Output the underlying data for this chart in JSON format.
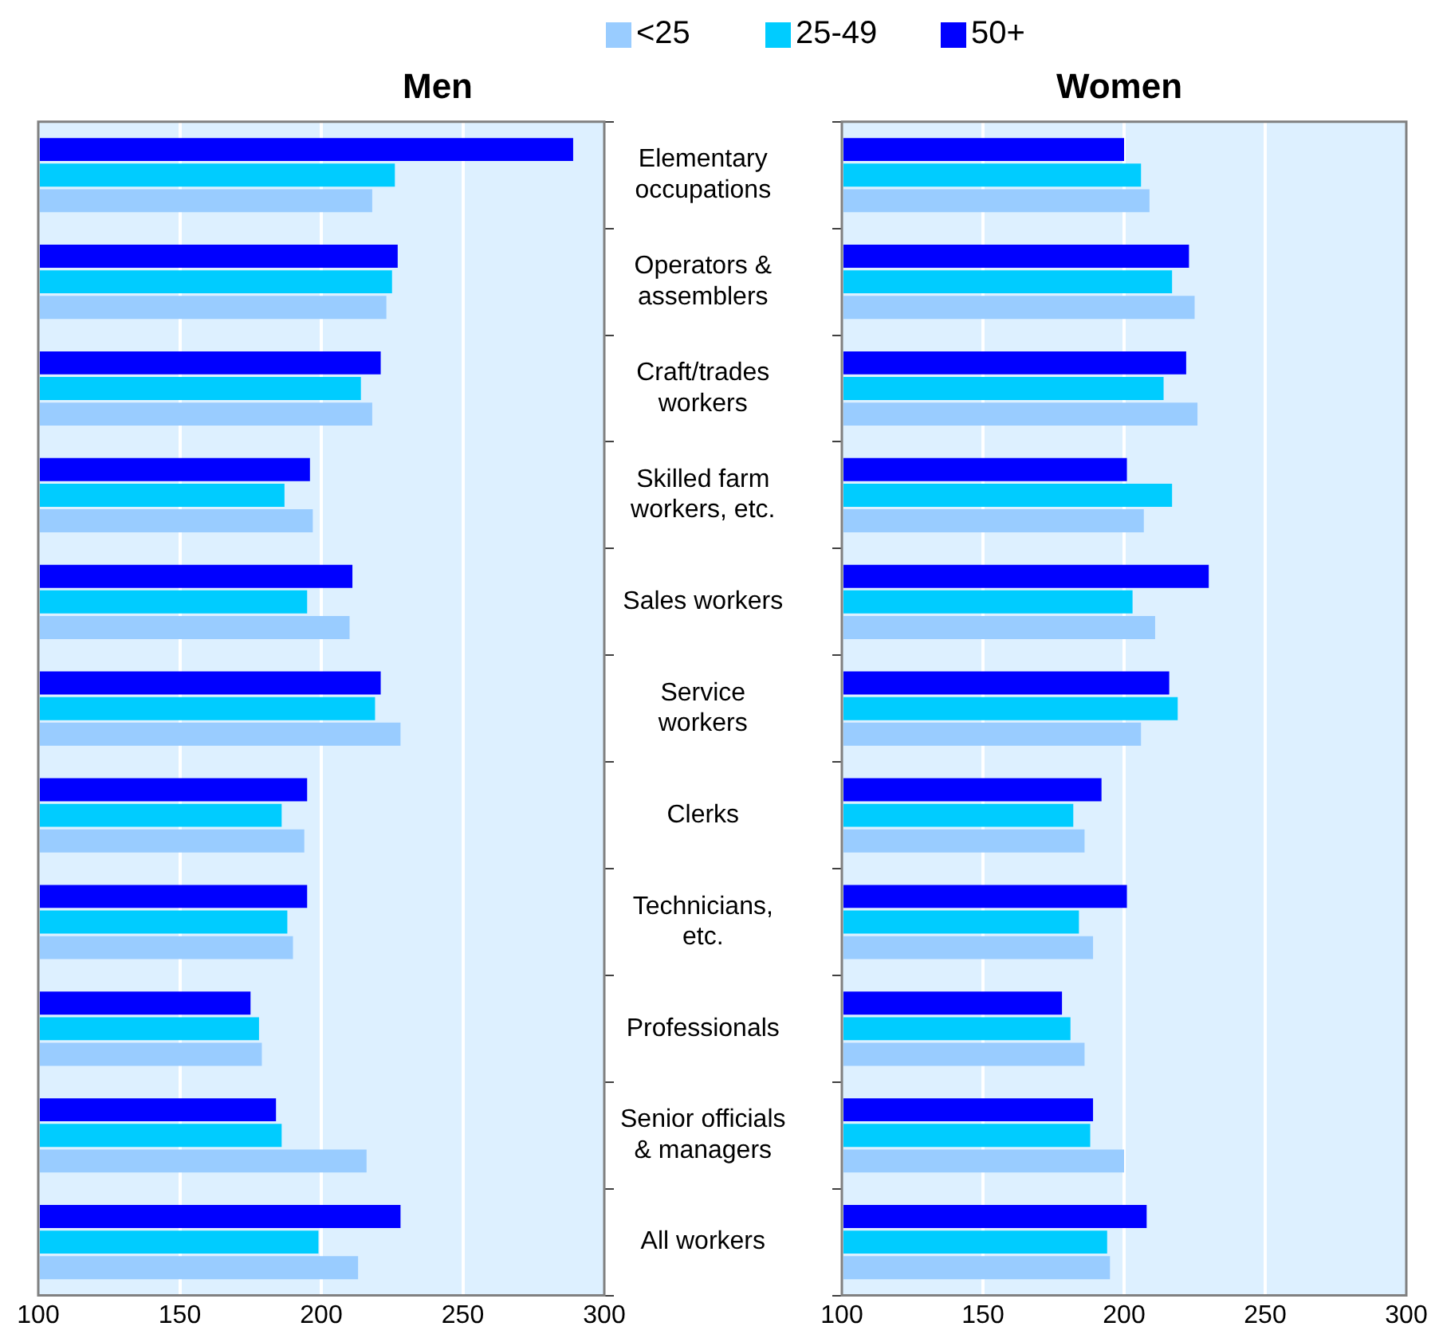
{
  "chart_data": [
    {
      "type": "bar",
      "orientation": "horizontal",
      "title": "Men",
      "categories": [
        "Elementary\noccupations",
        "Operators &\nassemblers",
        "Craft/trades\nworkers",
        "Skilled farm\nworkers, etc.",
        "Sales workers",
        "Service\nworkers",
        "Clerks",
        "Technicians,\netc.",
        "Professionals",
        "Senior officials\n& managers",
        "All workers"
      ],
      "series": [
        {
          "name": "<25",
          "color": "#99ccff",
          "values": [
            218,
            223,
            218,
            197,
            210,
            228,
            194,
            190,
            179,
            216,
            213
          ]
        },
        {
          "name": "25-49",
          "color": "#00ccff",
          "values": [
            226,
            225,
            214,
            187,
            195,
            219,
            186,
            188,
            178,
            186,
            199
          ]
        },
        {
          "name": "50+",
          "color": "#0000ff",
          "values": [
            289,
            227,
            221,
            196,
            211,
            221,
            195,
            195,
            175,
            184,
            228
          ]
        }
      ],
      "xlim": [
        100,
        300
      ],
      "xticks": [
        100,
        150,
        200,
        250,
        300
      ],
      "grid": "x",
      "legend": "top"
    },
    {
      "type": "bar",
      "orientation": "horizontal",
      "title": "Women",
      "categories": [
        null,
        null,
        null,
        null,
        null,
        null,
        null,
        null,
        null,
        null,
        null
      ],
      "series": [
        {
          "color": "#99ccff",
          "values": [
            209,
            225,
            226,
            207,
            211,
            206,
            186,
            189,
            186,
            200,
            195
          ]
        },
        {
          "color": "#00ccff",
          "values": [
            206,
            217,
            214,
            217,
            203,
            219,
            182,
            184,
            181,
            188,
            194
          ]
        },
        {
          "color": "#0000ff",
          "values": [
            200,
            223,
            222,
            201,
            230,
            216,
            192,
            201,
            178,
            189,
            208
          ]
        }
      ],
      "xlim": [
        100,
        300
      ],
      "xticks": [
        100,
        150,
        200,
        250,
        300
      ],
      "grid": "x",
      "tick_labels": "x"
    }
  ]
}
